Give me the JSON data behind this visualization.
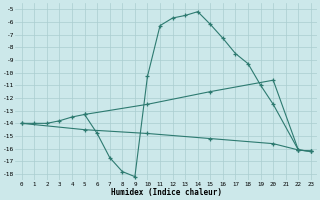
{
  "line1_x": [
    0,
    1,
    2,
    3,
    4,
    5,
    6,
    7,
    8,
    9,
    10,
    11,
    12,
    13,
    14,
    15,
    16,
    17,
    18,
    19,
    20,
    22,
    23
  ],
  "line1_y": [
    -14,
    -14,
    -14,
    -13.8,
    -13.5,
    -13.3,
    -14.8,
    -16.7,
    -17.8,
    -18.2,
    -10.3,
    -6.3,
    -5.7,
    -5.5,
    -5.2,
    -6.2,
    -7.3,
    -8.5,
    -9.3,
    -11.0,
    -12.5,
    -16.1,
    -16.2
  ],
  "line2_x": [
    5,
    10,
    15,
    20,
    22,
    23
  ],
  "line2_y": [
    -13.3,
    -12.5,
    -11.5,
    -10.6,
    -16.1,
    -16.2
  ],
  "line3_x": [
    0,
    5,
    10,
    15,
    20,
    22,
    23
  ],
  "line3_y": [
    -14.0,
    -14.5,
    -14.8,
    -15.2,
    -15.6,
    -16.1,
    -16.2
  ],
  "color": "#2d7a70",
  "bg_color": "#cce8ea",
  "grid_color": "#aacdd0",
  "xlabel": "Humidex (Indice chaleur)",
  "xlim": [
    -0.5,
    23.5
  ],
  "ylim": [
    -18.5,
    -4.5
  ],
  "yticks": [
    -5,
    -6,
    -7,
    -8,
    -9,
    -10,
    -11,
    -12,
    -13,
    -14,
    -15,
    -16,
    -17,
    -18
  ],
  "xticks": [
    0,
    1,
    2,
    3,
    4,
    5,
    6,
    7,
    8,
    9,
    10,
    11,
    12,
    13,
    14,
    15,
    16,
    17,
    18,
    19,
    20,
    21,
    22,
    23
  ]
}
